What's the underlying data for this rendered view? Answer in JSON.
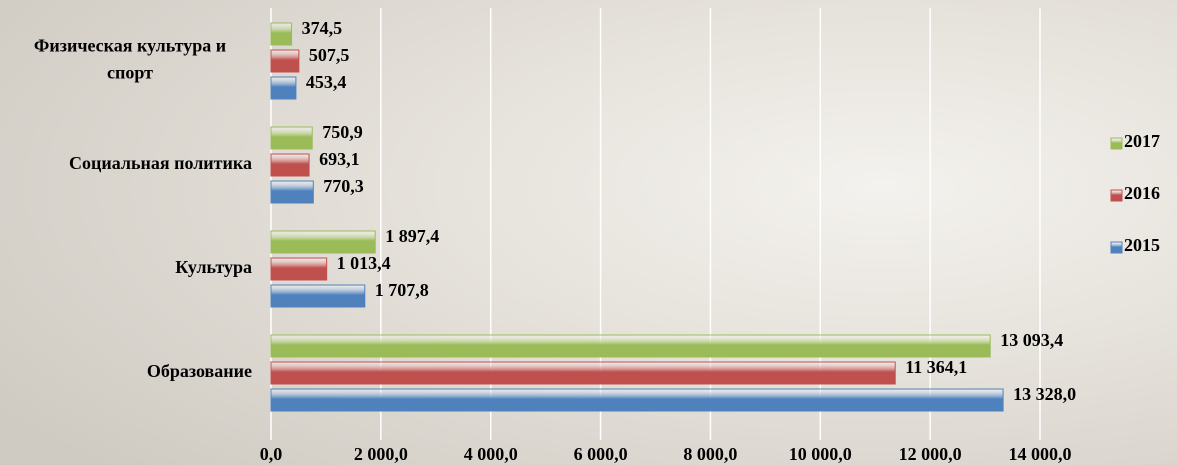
{
  "chart_data": {
    "type": "bar",
    "orientation": "horizontal",
    "categories": [
      "Физическая культура и спорт",
      "Социальная политика",
      "Культура",
      "Образование"
    ],
    "series": [
      {
        "name": "2017",
        "color": "#9bbb59",
        "values": [
          374.5,
          750.9,
          1897.4,
          13093.4
        ],
        "value_labels": [
          "374,5",
          "750,9",
          "1 897,4",
          "13 093,4"
        ]
      },
      {
        "name": "2016",
        "color": "#c0504d",
        "values": [
          507.5,
          693.1,
          1013.4,
          11364.1
        ],
        "value_labels": [
          "507,5",
          "693,1",
          "1 013,4",
          "11 364,1"
        ]
      },
      {
        "name": "2015",
        "color": "#4f81bd",
        "values": [
          453.4,
          770.3,
          1707.8,
          13328.0
        ],
        "value_labels": [
          "453,4",
          "770,3",
          "1 707,8",
          "13 328,0"
        ]
      }
    ],
    "xlim": [
      0,
      14000
    ],
    "xticks": [
      {
        "value": 0,
        "label": "0,0"
      },
      {
        "value": 2000,
        "label": "2 000,0"
      },
      {
        "value": 4000,
        "label": "4 000,0"
      },
      {
        "value": 6000,
        "label": "6 000,0"
      },
      {
        "value": 8000,
        "label": "8 000,0"
      },
      {
        "value": 10000,
        "label": "10 000,0"
      },
      {
        "value": 12000,
        "label": "12 000,0"
      },
      {
        "value": 14000,
        "label": "14 000,0"
      }
    ],
    "grid": true,
    "legend": "right"
  }
}
